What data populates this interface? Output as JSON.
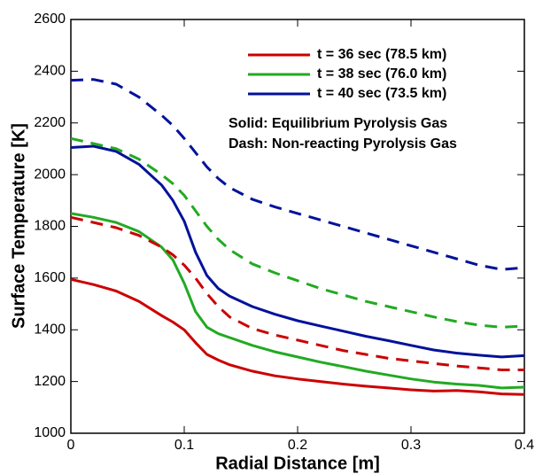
{
  "chart_data": {
    "type": "line",
    "xlabel": "Radial Distance [m]",
    "ylabel": "Surface Temperature [K]",
    "annotations": [
      "Solid: Equilibrium Pyrolysis Gas",
      "Dash: Non-reacting Pyrolysis Gas"
    ],
    "x": [
      0,
      0.02,
      0.04,
      0.06,
      0.08,
      0.09,
      0.1,
      0.11,
      0.12,
      0.13,
      0.14,
      0.16,
      0.18,
      0.2,
      0.22,
      0.24,
      0.26,
      0.28,
      0.3,
      0.32,
      0.34,
      0.36,
      0.38,
      0.4
    ],
    "series": [
      {
        "name": "t = 36 sec (78.5 km)",
        "color": "#cc0000",
        "dash": false,
        "values": [
          1595,
          1575,
          1550,
          1510,
          1455,
          1430,
          1400,
          1350,
          1305,
          1283,
          1265,
          1240,
          1222,
          1210,
          1200,
          1190,
          1182,
          1175,
          1168,
          1163,
          1165,
          1160,
          1152,
          1150
        ]
      },
      {
        "name": "t = 38 sec (76.0 km)",
        "color": "#22aa22",
        "dash": false,
        "values": [
          1850,
          1835,
          1815,
          1780,
          1720,
          1670,
          1580,
          1470,
          1410,
          1385,
          1370,
          1340,
          1315,
          1295,
          1275,
          1258,
          1240,
          1225,
          1210,
          1198,
          1190,
          1185,
          1175,
          1178
        ]
      },
      {
        "name": "t = 40 sec (73.5 km)",
        "color": "#00129a",
        "dash": false,
        "values": [
          2105,
          2110,
          2090,
          2040,
          1960,
          1900,
          1820,
          1700,
          1610,
          1560,
          1530,
          1490,
          1460,
          1435,
          1415,
          1395,
          1375,
          1358,
          1340,
          1322,
          1310,
          1302,
          1295,
          1300
        ]
      },
      {
        "color": "#cc0000",
        "dash": true,
        "values": [
          1835,
          1815,
          1795,
          1765,
          1720,
          1690,
          1650,
          1600,
          1540,
          1490,
          1450,
          1405,
          1380,
          1360,
          1340,
          1320,
          1305,
          1290,
          1280,
          1270,
          1260,
          1253,
          1245,
          1245
        ]
      },
      {
        "color": "#22aa22",
        "dash": true,
        "values": [
          2140,
          2120,
          2100,
          2060,
          2000,
          1965,
          1920,
          1860,
          1800,
          1750,
          1710,
          1655,
          1620,
          1590,
          1560,
          1535,
          1510,
          1490,
          1470,
          1450,
          1432,
          1418,
          1410,
          1415
        ]
      },
      {
        "color": "#00129a",
        "dash": true,
        "values": [
          2365,
          2368,
          2350,
          2300,
          2230,
          2190,
          2140,
          2085,
          2030,
          1985,
          1950,
          1905,
          1875,
          1850,
          1825,
          1800,
          1775,
          1750,
          1725,
          1700,
          1675,
          1650,
          1633,
          1640
        ]
      }
    ],
    "xlim": [
      0,
      0.4
    ],
    "xticks": [
      0,
      0.1,
      0.2,
      0.3,
      0.4
    ],
    "ylim": [
      1000,
      2600
    ],
    "yticks": [
      1000,
      1200,
      1400,
      1600,
      1800,
      2000,
      2200,
      2400,
      2600
    ],
    "grid": false,
    "legend": "upper right"
  }
}
